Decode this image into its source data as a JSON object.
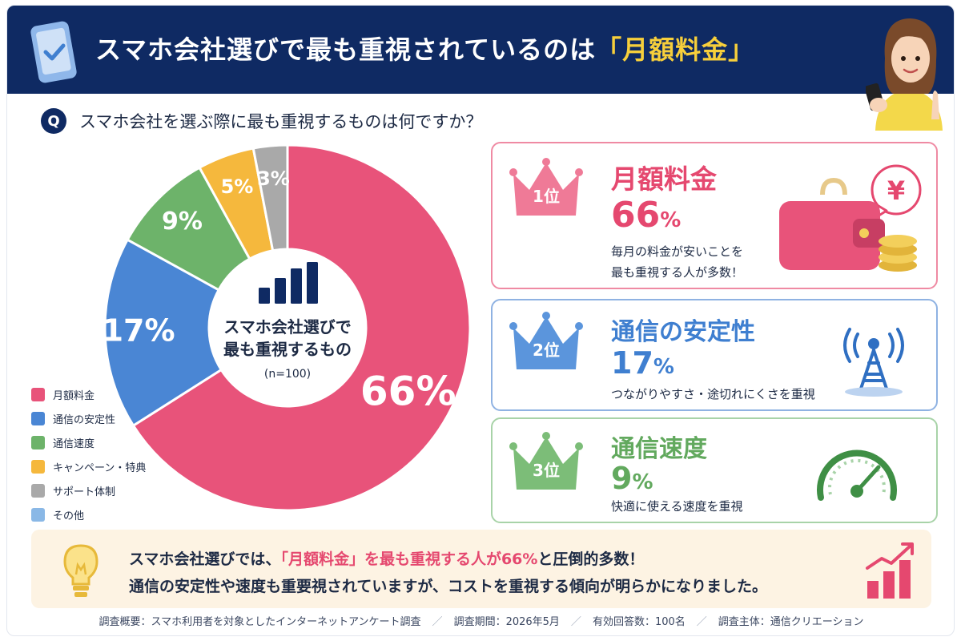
{
  "header": {
    "title_main": "スマホ会社選びで最も重視されているのは",
    "title_highlight": "「月額料金」"
  },
  "question": {
    "badge": "Q",
    "text": "スマホ会社を選ぶ際に最も重視するものは何ですか？"
  },
  "center": {
    "line1": "スマホ会社選びで",
    "line2": "最も重視するもの",
    "sample": "(n=100)"
  },
  "chart_data": {
    "type": "pie",
    "title": "スマホ会社選びで最も重視するもの",
    "sample_size": "(n=100)",
    "unit": "%",
    "categories": [
      "月額料金",
      "通信の安定性",
      "通信速度",
      "キャンペーン・特典",
      "サポート体制",
      "その他"
    ],
    "values": [
      66,
      17,
      9,
      5,
      3,
      0
    ],
    "colors": [
      "#e8537a",
      "#4a86d4",
      "#6db36a",
      "#f5b83d",
      "#a9a9a9",
      "#8ab8e6"
    ],
    "value_labels": [
      "66%",
      "17%",
      "9%",
      "5%",
      "3%",
      ""
    ],
    "legend_position": "bottom-left"
  },
  "ranking": [
    {
      "rank": "1位",
      "name": "月額料金",
      "pct_num": "66",
      "pct_unit": "%",
      "desc_line1": "毎月の料金が安いことを",
      "desc_line2": "最も重視する人が多数！",
      "color": "#e5486f",
      "icon": "wallet-yen-icon"
    },
    {
      "rank": "2位",
      "name": "通信の安定性",
      "pct_num": "17",
      "pct_unit": "%",
      "desc_line1": "つながりやすさ・途切れにくさを重視",
      "color": "#3f7fd0",
      "icon": "signal-tower-icon"
    },
    {
      "rank": "3位",
      "name": "通信速度",
      "pct_num": "9",
      "pct_unit": "%",
      "desc_line1": "快適に使える速度を重視",
      "color": "#62a95e",
      "icon": "speedometer-icon"
    }
  ],
  "summary": {
    "line1_a": "スマホ会社選びでは、",
    "line1_b": "「月額料金」を最も重視する人が66%",
    "line1_c": "と圧倒的多数！",
    "line2": "通信の安定性や速度も重要視されていますが、コストを重視する傾向が明らかになりました。"
  },
  "footer": {
    "item1": "調査概要：スマホ利用者を対象としたインターネットアンケート調査",
    "item2": "調査期間：2026年5月",
    "item3": "有効回答数：100名",
    "item4": "調査主体：通信クリエーション",
    "separator": "／"
  }
}
